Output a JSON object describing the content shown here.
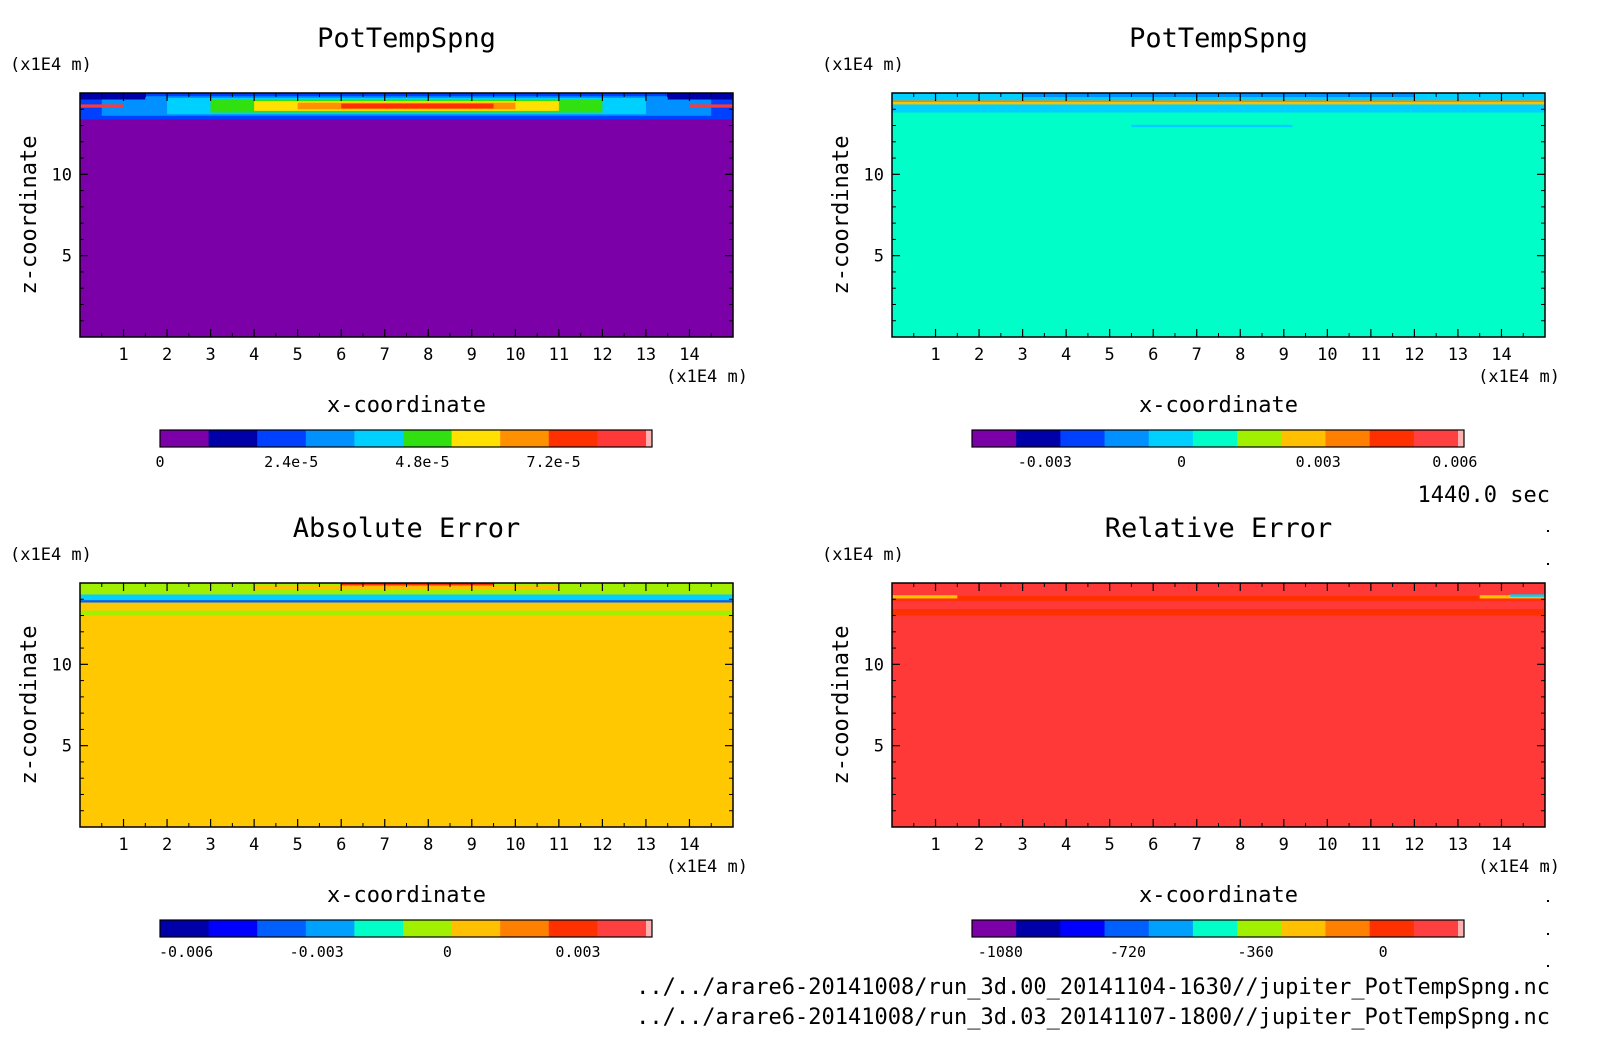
{
  "time_label": "1440.0 sec",
  "files": [
    "../../arare6-20141008/run_3d.00_20141104-1630//jupiter_PotTempSpng.nc",
    "../../arare6-20141008/run_3d.03_20141107-1800//jupiter_PotTempSpng.nc"
  ],
  "chart_data": [
    {
      "type": "heatmap",
      "title": "PotTempSpng",
      "xlabel": "x-coordinate",
      "ylabel": "z-coordinate",
      "x_unit": "(x1E4 m)",
      "y_unit": "(x1E4 m)",
      "xlim": [
        0,
        15
      ],
      "ylim": [
        0,
        15
      ],
      "x_ticks": [
        1,
        2,
        3,
        4,
        5,
        6,
        7,
        8,
        9,
        10,
        11,
        12,
        13,
        14
      ],
      "y_ticks": [
        5,
        10
      ],
      "colorbar": {
        "colors": [
          "#7b00a8",
          "#0000a8",
          "#0040ff",
          "#0090ff",
          "#00d0ff",
          "#30e010",
          "#ffe000",
          "#ff9000",
          "#ff3000",
          "#ff3838",
          "#ffb0b0"
        ],
        "tick_labels": [
          "0",
          "2.4e-5",
          "4.8e-5",
          "7.2e-5"
        ],
        "tick_values": [
          0,
          2.4e-05,
          4.8e-05,
          7.2e-05
        ],
        "range": [
          0,
          9e-05
        ]
      },
      "bands": [
        {
          "z0": 0,
          "z1": 13.4,
          "x0": 0,
          "x1": 15,
          "color": "#7b00a8"
        },
        {
          "z0": 13.4,
          "z1": 15,
          "x0": 0,
          "x1": 15,
          "color": "#0040ff"
        },
        {
          "z0": 13.6,
          "z1": 14.8,
          "x0": 0.5,
          "x1": 14.5,
          "color": "#0090ff"
        },
        {
          "z0": 13.7,
          "z1": 14.7,
          "x0": 2.0,
          "x1": 13.0,
          "color": "#00d0ff"
        },
        {
          "z0": 13.8,
          "z1": 14.6,
          "x0": 3.0,
          "x1": 12.0,
          "color": "#30e010"
        },
        {
          "z0": 13.9,
          "z1": 14.5,
          "x0": 4.0,
          "x1": 11.0,
          "color": "#ffe000"
        },
        {
          "z0": 14.0,
          "z1": 14.4,
          "x0": 5.0,
          "x1": 10.0,
          "color": "#ff9000"
        },
        {
          "z0": 14.05,
          "z1": 14.35,
          "x0": 6.0,
          "x1": 9.5,
          "color": "#ff3000"
        },
        {
          "z0": 14.6,
          "z1": 15,
          "x0": 0,
          "x1": 1.5,
          "color": "#0000a8"
        },
        {
          "z0": 14.6,
          "z1": 15,
          "x0": 13.5,
          "x1": 15,
          "color": "#0000a8"
        },
        {
          "z0": 14.1,
          "z1": 14.3,
          "x0": 0,
          "x1": 1.0,
          "color": "#ff3838"
        },
        {
          "z0": 14.1,
          "z1": 14.3,
          "x0": 14.0,
          "x1": 15,
          "color": "#ff3838"
        }
      ]
    },
    {
      "type": "heatmap",
      "title": "PotTempSpng",
      "xlabel": "x-coordinate",
      "ylabel": "z-coordinate",
      "x_unit": "(x1E4 m)",
      "y_unit": "(x1E4 m)",
      "xlim": [
        0,
        15
      ],
      "ylim": [
        0,
        15
      ],
      "x_ticks": [
        1,
        2,
        3,
        4,
        5,
        6,
        7,
        8,
        9,
        10,
        11,
        12,
        13,
        14
      ],
      "y_ticks": [
        5,
        10
      ],
      "colorbar": {
        "colors": [
          "#7b00a8",
          "#0000a8",
          "#0040ff",
          "#0090ff",
          "#00d0ff",
          "#00ffc8",
          "#a0f000",
          "#ffc000",
          "#ff8000",
          "#ff3000",
          "#ff4040",
          "#ffb0b0"
        ],
        "tick_labels": [
          "-0.003",
          "0",
          "0.003",
          "0.006"
        ],
        "tick_values": [
          -0.003,
          0,
          0.003,
          0.006
        ],
        "range": [
          -0.0046,
          0.0062
        ]
      },
      "bands": [
        {
          "z0": 0,
          "z1": 15,
          "x0": 0,
          "x1": 15,
          "color": "#00ffc8"
        },
        {
          "z0": 13.8,
          "z1": 14.3,
          "x0": 0,
          "x1": 15,
          "color": "#00d0ff"
        },
        {
          "z0": 14.3,
          "z1": 14.45,
          "x0": 0,
          "x1": 15,
          "color": "#ffc000"
        },
        {
          "z0": 14.45,
          "z1": 14.55,
          "x0": 0,
          "x1": 15,
          "color": "#ff8000"
        },
        {
          "z0": 14.55,
          "z1": 15,
          "x0": 0,
          "x1": 15,
          "color": "#00d0ff"
        },
        {
          "z0": 14.75,
          "z1": 15,
          "x0": 3,
          "x1": 12,
          "color": "#0090ff"
        },
        {
          "z0": 12.9,
          "z1": 13.05,
          "x0": 5.5,
          "x1": 9.2,
          "color": "#00d0ff"
        }
      ]
    },
    {
      "type": "heatmap",
      "title": "Absolute Error",
      "xlabel": "x-coordinate",
      "ylabel": "z-coordinate",
      "x_unit": "(x1E4 m)",
      "y_unit": "(x1E4 m)",
      "xlim": [
        0,
        15
      ],
      "ylim": [
        0,
        15
      ],
      "x_ticks": [
        1,
        2,
        3,
        4,
        5,
        6,
        7,
        8,
        9,
        10,
        11,
        12,
        13,
        14
      ],
      "y_ticks": [
        5,
        10
      ],
      "colorbar": {
        "colors": [
          "#0000a8",
          "#0000ff",
          "#0060ff",
          "#00a0ff",
          "#00ffc8",
          "#a0f000",
          "#ffc000",
          "#ff8000",
          "#ff3000",
          "#ff4040",
          "#ffb0b0"
        ],
        "tick_labels": [
          "-0.006",
          "-0.003",
          "0",
          "0.003"
        ],
        "tick_values": [
          -0.006,
          -0.003,
          0,
          0.003
        ],
        "range": [
          -0.0066,
          0.0047
        ]
      },
      "bands": [
        {
          "z0": 0,
          "z1": 15,
          "x0": 0,
          "x1": 15,
          "color": "#ffc800"
        },
        {
          "z0": 13.0,
          "z1": 13.3,
          "x0": 0,
          "x1": 15,
          "color": "#a0f000"
        },
        {
          "z0": 13.8,
          "z1": 13.95,
          "x0": 0,
          "x1": 15,
          "color": "#0060ff"
        },
        {
          "z0": 13.95,
          "z1": 14.3,
          "x0": 0,
          "x1": 15,
          "color": "#00d0ff"
        },
        {
          "z0": 14.3,
          "z1": 15,
          "x0": 0,
          "x1": 15,
          "color": "#a0f000"
        },
        {
          "z0": 14.6,
          "z1": 14.85,
          "x0": 4,
          "x1": 11,
          "color": "#ffc000"
        },
        {
          "z0": 14.85,
          "z1": 15,
          "x0": 6,
          "x1": 9.5,
          "color": "#ff3000"
        }
      ]
    },
    {
      "type": "heatmap",
      "title": "Relative Error",
      "xlabel": "x-coordinate",
      "ylabel": "z-coordinate",
      "x_unit": "(x1E4 m)",
      "y_unit": "(x1E4 m)",
      "xlim": [
        0,
        15
      ],
      "ylim": [
        0,
        15
      ],
      "x_ticks": [
        1,
        2,
        3,
        4,
        5,
        6,
        7,
        8,
        9,
        10,
        11,
        12,
        13,
        14
      ],
      "y_ticks": [
        5,
        10
      ],
      "colorbar": {
        "colors": [
          "#7b00a8",
          "#0000a8",
          "#0000ff",
          "#0060ff",
          "#00a0ff",
          "#00ffc8",
          "#a0f000",
          "#ffc000",
          "#ff8000",
          "#ff3000",
          "#ff4040",
          "#ffb0b0"
        ],
        "tick_labels": [
          "-1080",
          "-720",
          "-360",
          "0"
        ],
        "tick_values": [
          -1080,
          -720,
          -360,
          0
        ],
        "range": [
          -1160,
          228
        ]
      },
      "bands": [
        {
          "z0": 0,
          "z1": 15,
          "x0": 0,
          "x1": 15,
          "color": "#ff3838"
        },
        {
          "z0": 13.0,
          "z1": 13.4,
          "x0": 0,
          "x1": 15,
          "color": "#ff3000"
        },
        {
          "z0": 13.9,
          "z1": 14.2,
          "x0": 0,
          "x1": 15,
          "color": "#ff3000"
        },
        {
          "z0": 14.05,
          "z1": 14.25,
          "x0": 0,
          "x1": 1.5,
          "color": "#ffc000"
        },
        {
          "z0": 14.05,
          "z1": 14.25,
          "x0": 13.5,
          "x1": 15,
          "color": "#ffc000"
        },
        {
          "z0": 14.15,
          "z1": 14.3,
          "x0": 14.2,
          "x1": 15,
          "color": "#00d0ff"
        }
      ]
    }
  ]
}
